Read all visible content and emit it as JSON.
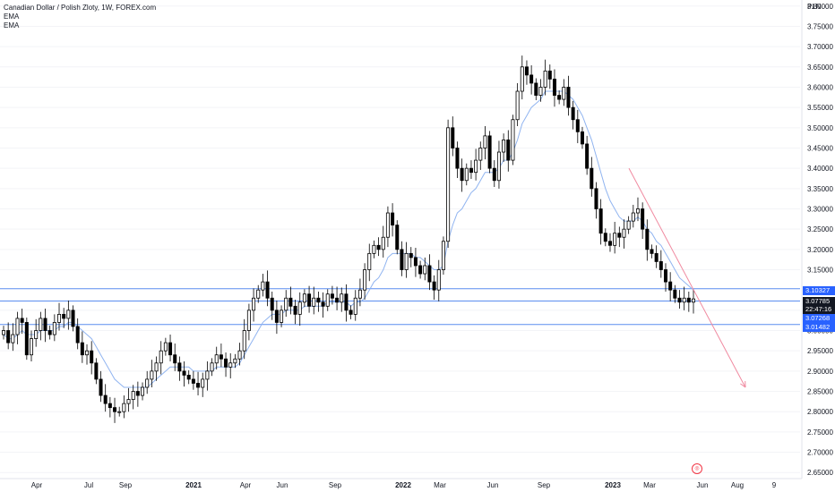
{
  "legend": {
    "title": "Canadian Dollar / Polish Zloty, 1W, FOREX.com",
    "ema1": "EMA",
    "ema2": "EMA"
  },
  "axis": {
    "unit": "PLN",
    "y_ticks": [
      "3.80000",
      "3.75000",
      "3.70000",
      "3.65000",
      "3.60000",
      "3.55000",
      "3.50000",
      "3.45000",
      "3.40000",
      "3.35000",
      "3.30000",
      "3.25000",
      "3.20000",
      "3.15000",
      "3.05000",
      "3.00000",
      "2.95000",
      "2.90000",
      "2.85000",
      "2.80000",
      "2.75000",
      "2.70000",
      "2.65000"
    ],
    "x_ticks": [
      {
        "label": "Apr",
        "bold": false
      },
      {
        "label": "Jul",
        "bold": false
      },
      {
        "label": "Sep",
        "bold": false
      },
      {
        "label": "2021",
        "bold": true
      },
      {
        "label": "Apr",
        "bold": false
      },
      {
        "label": "Jun",
        "bold": false
      },
      {
        "label": "Sep",
        "bold": false
      },
      {
        "label": "2022",
        "bold": true
      },
      {
        "label": "Mar",
        "bold": false
      },
      {
        "label": "Jun",
        "bold": false
      },
      {
        "label": "Sep",
        "bold": false
      },
      {
        "label": "2023",
        "bold": true
      },
      {
        "label": "Mar",
        "bold": false
      },
      {
        "label": "Jun",
        "bold": false
      },
      {
        "label": "Aug",
        "bold": false
      },
      {
        "label": "9",
        "bold": false
      }
    ]
  },
  "price_tags": {
    "upper": "3.10327",
    "last_price": "3.07785",
    "countdown": "22:47:16",
    "middle": "3.07268",
    "lower": "3.01482"
  },
  "colors": {
    "candle_up": "#ffffff",
    "candle_down": "#000000",
    "candle_border": "#000000",
    "ema": "#90b4f0",
    "levels": "#5b8def",
    "trend": "#f08aa0"
  },
  "chart_data": {
    "type": "candlestick",
    "title": "Canadian Dollar / Polish Zloty, 1W, FOREX.com",
    "ylabel": "PLN",
    "ylim": [
      2.635,
      3.815
    ],
    "horizontal_levels": [
      3.10327,
      3.07268,
      3.01482
    ],
    "close": [
      3.0,
      2.97,
      2.99,
      3.03,
      3.02,
      2.94,
      2.98,
      3.0,
      3.03,
      3.0,
      2.99,
      3.02,
      3.04,
      3.03,
      3.05,
      3.01,
      2.97,
      2.94,
      2.95,
      2.92,
      2.88,
      2.84,
      2.82,
      2.81,
      2.8,
      2.8,
      2.82,
      2.83,
      2.85,
      2.84,
      2.86,
      2.88,
      2.9,
      2.92,
      2.95,
      2.97,
      2.94,
      2.92,
      2.9,
      2.89,
      2.88,
      2.87,
      2.86,
      2.88,
      2.9,
      2.92,
      2.94,
      2.93,
      2.91,
      2.92,
      2.93,
      2.95,
      3.0,
      3.05,
      3.08,
      3.1,
      3.12,
      3.08,
      3.05,
      3.02,
      3.05,
      3.08,
      3.06,
      3.04,
      3.07,
      3.09,
      3.06,
      3.08,
      3.07,
      3.06,
      3.09,
      3.08,
      3.07,
      3.09,
      3.05,
      3.04,
      3.08,
      3.1,
      3.15,
      3.19,
      3.21,
      3.2,
      3.23,
      3.29,
      3.26,
      3.2,
      3.15,
      3.19,
      3.18,
      3.16,
      3.14,
      3.16,
      3.12,
      3.1,
      3.15,
      3.22,
      3.5,
      3.45,
      3.4,
      3.37,
      3.4,
      3.39,
      3.42,
      3.45,
      3.48,
      3.4,
      3.37,
      3.44,
      3.47,
      3.42,
      3.52,
      3.59,
      3.65,
      3.63,
      3.61,
      3.58,
      3.6,
      3.64,
      3.62,
      3.58,
      3.57,
      3.6,
      3.55,
      3.52,
      3.49,
      3.46,
      3.4,
      3.35,
      3.3,
      3.24,
      3.22,
      3.21,
      3.24,
      3.23,
      3.25,
      3.27,
      3.29,
      3.3,
      3.25,
      3.2,
      3.19,
      3.17,
      3.15,
      3.12,
      3.1,
      3.08,
      3.07,
      3.08,
      3.07,
      3.078
    ],
    "ema_values": [
      2.99,
      2.98,
      2.98,
      2.99,
      3.0,
      2.99,
      2.99,
      2.99,
      3.0,
      3.0,
      3.0,
      3.0,
      3.01,
      3.01,
      3.02,
      3.02,
      3.01,
      3.0,
      2.99,
      2.98,
      2.96,
      2.94,
      2.92,
      2.9,
      2.88,
      2.87,
      2.86,
      2.86,
      2.86,
      2.86,
      2.86,
      2.86,
      2.87,
      2.88,
      2.89,
      2.9,
      2.91,
      2.91,
      2.91,
      2.91,
      2.91,
      2.9,
      2.9,
      2.9,
      2.9,
      2.9,
      2.91,
      2.91,
      2.91,
      2.91,
      2.91,
      2.92,
      2.94,
      2.96,
      2.98,
      3.0,
      3.02,
      3.03,
      3.04,
      3.04,
      3.04,
      3.05,
      3.05,
      3.05,
      3.05,
      3.06,
      3.06,
      3.06,
      3.06,
      3.06,
      3.07,
      3.07,
      3.07,
      3.07,
      3.07,
      3.06,
      3.07,
      3.07,
      3.08,
      3.1,
      3.12,
      3.13,
      3.15,
      3.18,
      3.19,
      3.19,
      3.19,
      3.19,
      3.19,
      3.18,
      3.18,
      3.17,
      3.16,
      3.15,
      3.15,
      3.16,
      3.22,
      3.26,
      3.29,
      3.3,
      3.32,
      3.34,
      3.35,
      3.37,
      3.39,
      3.39,
      3.39,
      3.4,
      3.42,
      3.42,
      3.44,
      3.47,
      3.51,
      3.53,
      3.55,
      3.56,
      3.57,
      3.59,
      3.59,
      3.59,
      3.59,
      3.59,
      3.58,
      3.57,
      3.55,
      3.53,
      3.5,
      3.47,
      3.43,
      3.39,
      3.35,
      3.32,
      3.3,
      3.28,
      3.27,
      3.27,
      3.27,
      3.28,
      3.27,
      3.25,
      3.24,
      3.22,
      3.21,
      3.19,
      3.17,
      3.15,
      3.13,
      3.12,
      3.11,
      3.1
    ]
  }
}
